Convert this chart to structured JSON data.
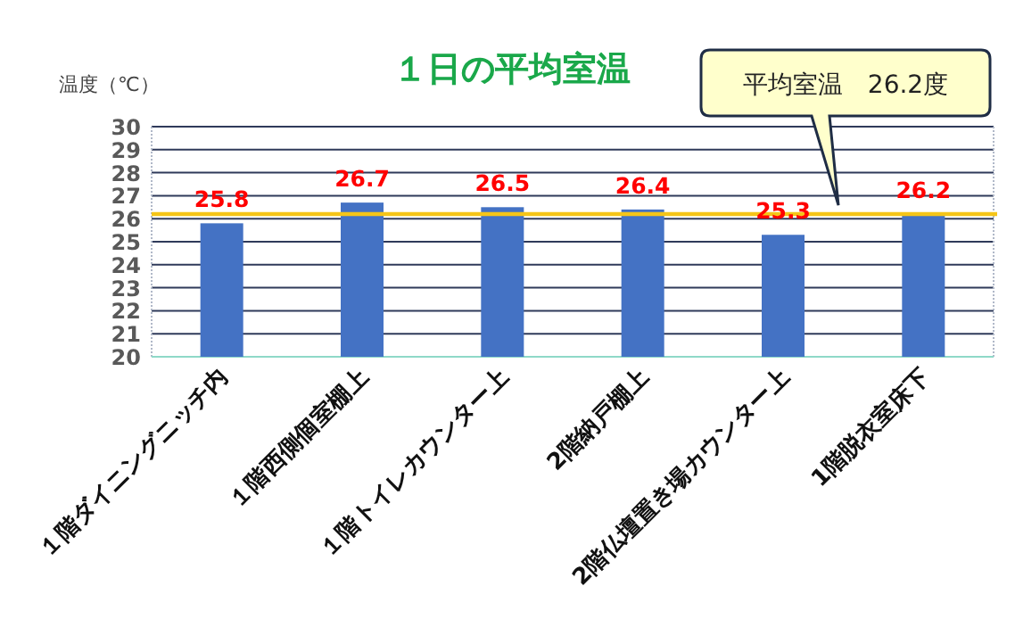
{
  "chart_data": {
    "type": "bar",
    "title": "１日の平均室温",
    "ylabel": "温度（℃）",
    "categories": [
      "１階ダイニングニッチ内",
      "１階西側個室棚上",
      "１階トイレカウンター上",
      "2階納戸棚上",
      "2階仏壇置き場カウンター上",
      "1階脱衣室床下"
    ],
    "values": [
      25.8,
      26.7,
      26.5,
      26.4,
      25.3,
      26.2
    ],
    "color": "#4472c4",
    "ylim": [
      20,
      30
    ],
    "yticks": [
      20,
      21,
      22,
      23,
      24,
      25,
      26,
      27,
      28,
      29,
      30
    ],
    "grid": "y",
    "data_labels": true,
    "ref_lines": [
      {
        "axis": "y",
        "value": 26.2,
        "color": "#f5c518"
      }
    ],
    "annotations": [
      "平均室温　26.2度"
    ]
  }
}
